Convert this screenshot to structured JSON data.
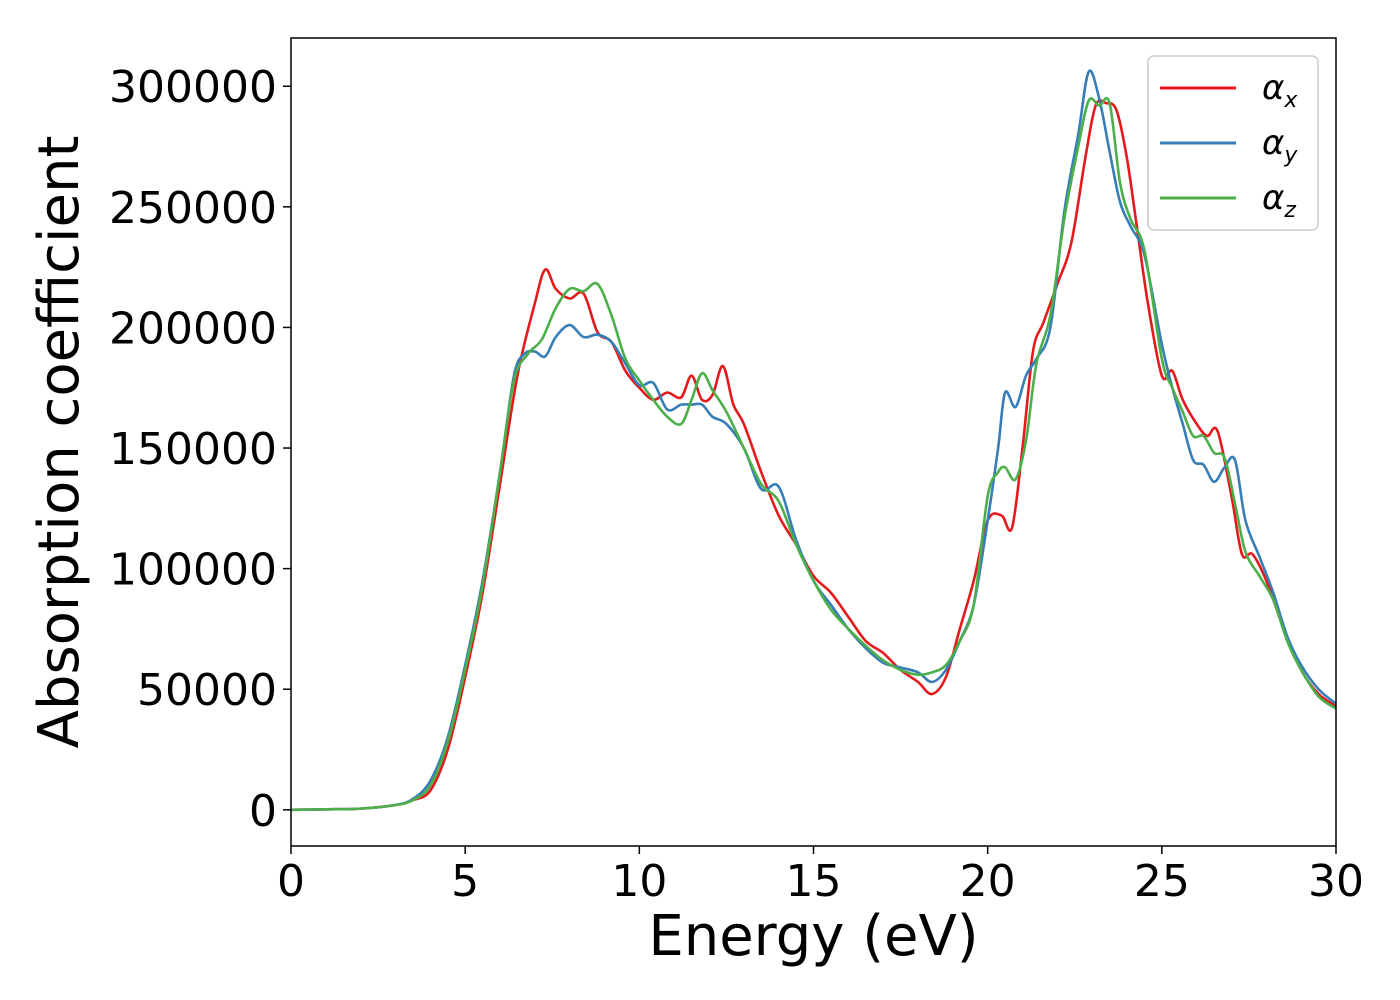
{
  "chart_data": {
    "type": "line",
    "title": "",
    "xlabel": "Energy (eV)",
    "ylabel": "Absorption coefficient",
    "xlim": [
      0,
      30
    ],
    "ylim": [
      -15000,
      320000
    ],
    "xticks": [
      0,
      5,
      10,
      15,
      20,
      25,
      30
    ],
    "xtick_labels": [
      "0",
      "5",
      "10",
      "15",
      "20",
      "25",
      "30"
    ],
    "yticks": [
      0,
      50000,
      100000,
      150000,
      200000,
      250000,
      300000
    ],
    "ytick_labels": [
      "0",
      "50000",
      "100000",
      "150000",
      "200000",
      "250000",
      "300000"
    ],
    "grid": false,
    "legend_position": "top-right",
    "series": [
      {
        "name": "αx",
        "symbol": "α",
        "subscript": "x",
        "color": "#e41a1c",
        "x": [
          0,
          1,
          2,
          3,
          3.5,
          4,
          4.5,
          5,
          5.5,
          6,
          6.5,
          7,
          7.3,
          7.6,
          8,
          8.4,
          8.8,
          9.2,
          9.6,
          10,
          10.4,
          10.8,
          11.2,
          11.5,
          11.8,
          12.1,
          12.4,
          12.7,
          13,
          13.5,
          14,
          14.5,
          15,
          15.5,
          16,
          16.5,
          17,
          17.5,
          18,
          18.4,
          18.8,
          19.2,
          19.6,
          20,
          20.4,
          20.7,
          21,
          21.3,
          21.6,
          22,
          22.4,
          22.8,
          23.1,
          23.4,
          23.7,
          24,
          24.3,
          24.6,
          25,
          25.3,
          25.6,
          26,
          26.3,
          26.6,
          27,
          27.3,
          27.6,
          28,
          28.5,
          29,
          29.5,
          30
        ],
        "y": [
          0,
          200,
          500,
          2000,
          4000,
          8000,
          25000,
          55000,
          90000,
          135000,
          180000,
          210000,
          224000,
          216000,
          212000,
          214000,
          198000,
          194000,
          182000,
          175000,
          170000,
          173000,
          171000,
          180000,
          170000,
          172000,
          184000,
          168000,
          160000,
          140000,
          122000,
          110000,
          97000,
          90000,
          80000,
          70000,
          65000,
          58000,
          53000,
          48000,
          55000,
          75000,
          95000,
          120000,
          122000,
          117000,
          150000,
          190000,
          202000,
          218000,
          235000,
          270000,
          292000,
          293000,
          290000,
          270000,
          240000,
          210000,
          180000,
          182000,
          170000,
          160000,
          155000,
          157000,
          130000,
          106000,
          106000,
          95000,
          75000,
          58000,
          48000,
          43000
        ]
      },
      {
        "name": "αy",
        "symbol": "α",
        "subscript": "y",
        "color": "#377eb8",
        "x": [
          0,
          1,
          2,
          3,
          3.5,
          4,
          4.5,
          5,
          5.5,
          6,
          6.4,
          6.7,
          7,
          7.3,
          7.6,
          8,
          8.4,
          8.8,
          9.2,
          9.6,
          10,
          10.4,
          10.8,
          11.2,
          11.5,
          11.8,
          12.1,
          12.5,
          13,
          13.5,
          14,
          14.5,
          15,
          15.5,
          16,
          16.5,
          17,
          17.5,
          18,
          18.4,
          18.8,
          19.2,
          19.6,
          20,
          20.3,
          20.5,
          20.8,
          21.1,
          21.4,
          21.8,
          22.2,
          22.6,
          22.9,
          23.2,
          23.5,
          23.8,
          24.1,
          24.5,
          25,
          25.3,
          25.6,
          25.9,
          26.2,
          26.5,
          26.8,
          27.1,
          27.4,
          27.8,
          28.2,
          28.6,
          29,
          29.5,
          30
        ],
        "y": [
          0,
          200,
          500,
          2000,
          4500,
          12000,
          30000,
          60000,
          95000,
          140000,
          180000,
          189000,
          190000,
          188000,
          196000,
          201000,
          196000,
          197000,
          194000,
          185000,
          176000,
          177000,
          166000,
          168000,
          168000,
          168000,
          163000,
          160000,
          150000,
          133000,
          134000,
          112000,
          95000,
          85000,
          75000,
          67000,
          61000,
          59000,
          57000,
          53000,
          58000,
          70000,
          85000,
          120000,
          150000,
          173000,
          167000,
          180000,
          187000,
          200000,
          248000,
          280000,
          306000,
          295000,
          273000,
          252000,
          242000,
          230000,
          193000,
          175000,
          160000,
          145000,
          143000,
          136000,
          142000,
          145000,
          120000,
          105000,
          90000,
          72000,
          60000,
          50000,
          44000
        ]
      },
      {
        "name": "αz",
        "symbol": "α",
        "subscript": "z",
        "color": "#4daf4a",
        "x": [
          0,
          1,
          2,
          3,
          3.5,
          4,
          4.5,
          5,
          5.5,
          6,
          6.4,
          6.8,
          7.2,
          7.6,
          8,
          8.4,
          8.8,
          9.2,
          9.6,
          10,
          10.4,
          10.8,
          11.2,
          11.5,
          11.8,
          12.1,
          12.5,
          13,
          13.5,
          14,
          14.5,
          15,
          15.5,
          16,
          16.5,
          17,
          17.5,
          18,
          18.4,
          18.8,
          19.2,
          19.6,
          20,
          20.3,
          20.5,
          20.8,
          21.1,
          21.4,
          21.8,
          22.2,
          22.6,
          22.9,
          23.2,
          23.5,
          23.8,
          24.1,
          24.5,
          25,
          25.3,
          25.6,
          25.9,
          26.2,
          26.5,
          26.8,
          27.1,
          27.4,
          27.8,
          28.2,
          28.6,
          29,
          29.5,
          30
        ],
        "y": [
          0,
          200,
          500,
          2000,
          4000,
          10000,
          28000,
          58000,
          93000,
          140000,
          178000,
          189000,
          195000,
          208000,
          216000,
          215000,
          218000,
          205000,
          187000,
          178000,
          170000,
          163000,
          160000,
          170000,
          181000,
          174000,
          165000,
          150000,
          135000,
          128000,
          110000,
          95000,
          83000,
          75000,
          68000,
          62000,
          58000,
          56000,
          57000,
          60000,
          70000,
          85000,
          130000,
          140000,
          142000,
          137000,
          153000,
          185000,
          205000,
          245000,
          275000,
          294000,
          292000,
          293000,
          260000,
          245000,
          232000,
          187000,
          175000,
          165000,
          155000,
          155000,
          148000,
          146000,
          127000,
          107000,
          97000,
          87000,
          70000,
          58000,
          47000,
          42000
        ]
      }
    ]
  }
}
